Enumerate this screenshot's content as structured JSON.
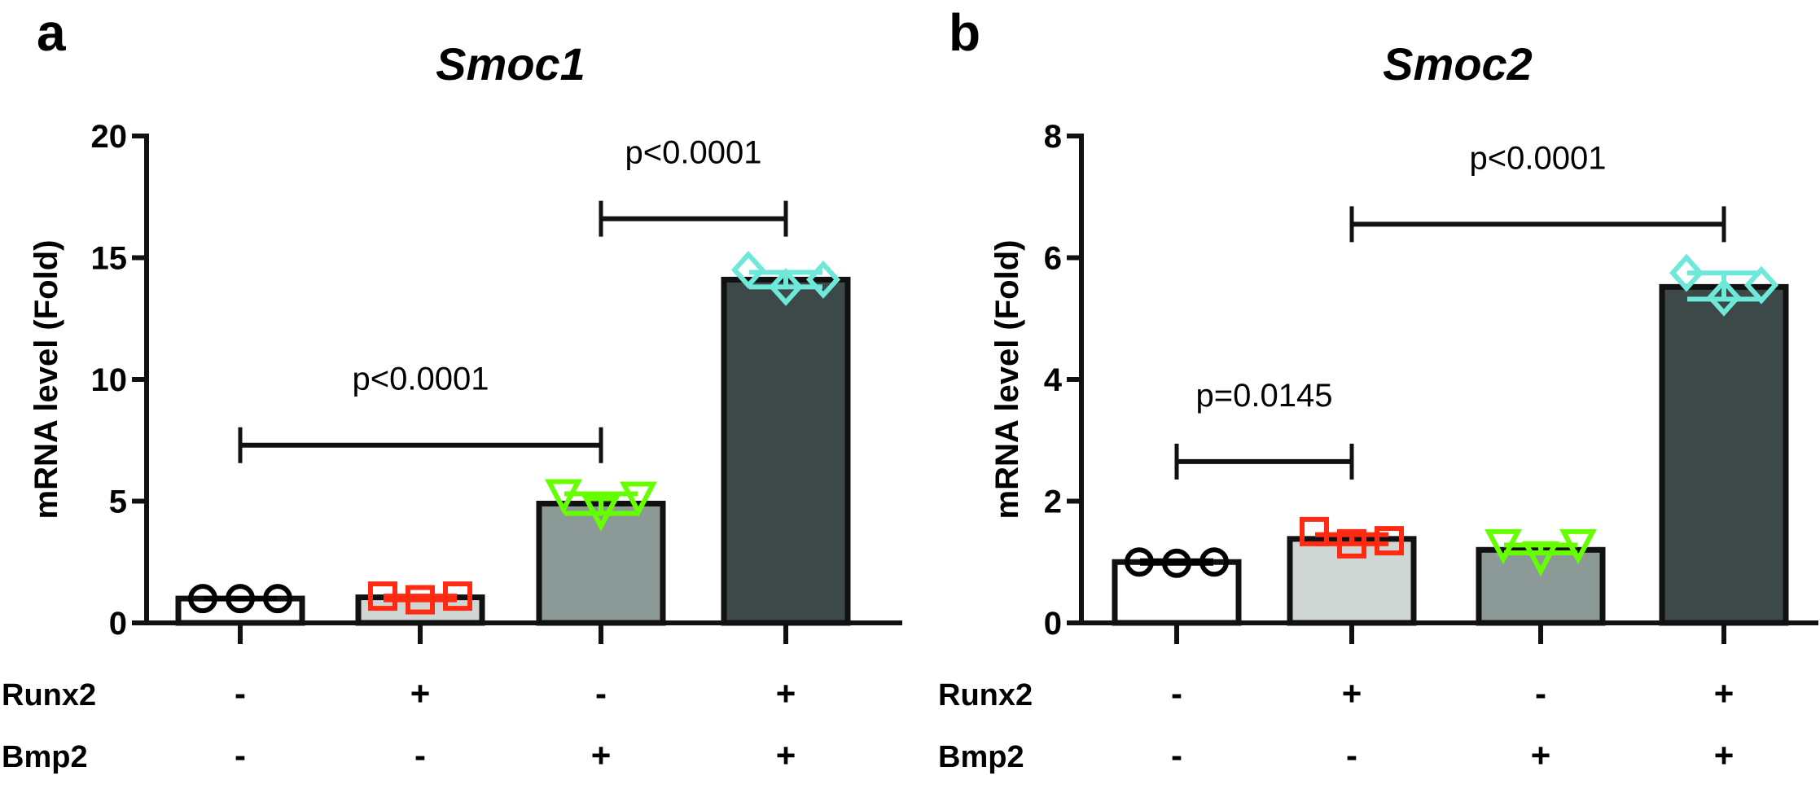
{
  "colors": {
    "bar1": "#ffffff",
    "bar2": "#cfd6d4",
    "bar3": "#8b9a97",
    "bar4": "#3d4849",
    "m1": "#000000",
    "m2": "#ff2a12",
    "m3": "#66ff00",
    "m4": "#6ee8d8",
    "axis": "#111111"
  },
  "row_labels": [
    "Runx2",
    "Bmp2"
  ],
  "conditions": {
    "runx2": [
      "-",
      "+",
      "-",
      "+"
    ],
    "bmp2": [
      "-",
      "-",
      "+",
      "+"
    ]
  },
  "chart_data": [
    {
      "panel": "a",
      "type": "bar",
      "title": "Smoc1",
      "ylabel": "mRNA level (Fold)",
      "ylim": [
        0,
        20
      ],
      "yticks": [
        "0",
        "5",
        "10",
        "15",
        "20"
      ],
      "ytick_values": [
        0,
        5,
        10,
        15,
        20
      ],
      "categories": [
        "Runx2- Bmp2-",
        "Runx2+ Bmp2-",
        "Runx2- Bmp2+",
        "Runx2+ Bmp2+"
      ],
      "values": [
        1.0,
        1.05,
        4.9,
        14.1
      ],
      "points": [
        [
          1.0,
          1.0,
          1.0
        ],
        [
          1.1,
          0.95,
          1.1
        ],
        [
          5.3,
          4.6,
          5.2
        ],
        [
          14.5,
          13.8,
          14.1
        ]
      ],
      "error": [
        [
          1.0,
          1.0
        ],
        [
          0.95,
          1.1
        ],
        [
          4.5,
          5.3
        ],
        [
          13.8,
          14.4
        ]
      ],
      "markers": [
        "circle",
        "square",
        "triangle-down",
        "diamond"
      ],
      "significance": [
        {
          "from": 0,
          "to": 2,
          "y": 7.3,
          "label": "p<0.0001"
        },
        {
          "from": 2,
          "to": 3,
          "y": 16.6,
          "label": "p<0.0001"
        }
      ]
    },
    {
      "panel": "b",
      "type": "bar",
      "title": "Smoc2",
      "ylabel": "mRNA level (Fold)",
      "ylim": [
        0,
        8
      ],
      "yticks": [
        "0",
        "2",
        "4",
        "6",
        "8"
      ],
      "ytick_values": [
        0,
        2,
        4,
        6,
        8
      ],
      "categories": [
        "Runx2- Bmp2-",
        "Runx2+ Bmp2-",
        "Runx2- Bmp2+",
        "Runx2+ Bmp2+"
      ],
      "values": [
        1.0,
        1.38,
        1.2,
        5.52
      ],
      "points": [
        [
          1.0,
          0.98,
          1.0
        ],
        [
          1.5,
          1.3,
          1.35
        ],
        [
          1.3,
          1.1,
          1.3
        ],
        [
          5.75,
          5.35,
          5.55
        ]
      ],
      "error": [
        [
          0.98,
          1.02
        ],
        [
          1.3,
          1.45
        ],
        [
          1.15,
          1.28
        ],
        [
          5.32,
          5.75
        ]
      ],
      "markers": [
        "circle",
        "square",
        "triangle-down",
        "diamond"
      ],
      "significance": [
        {
          "from": 0,
          "to": 1,
          "y": 2.65,
          "label": "p=0.0145"
        },
        {
          "from": 1,
          "to": 3,
          "y": 6.55,
          "label": "p<0.0001"
        }
      ]
    }
  ]
}
